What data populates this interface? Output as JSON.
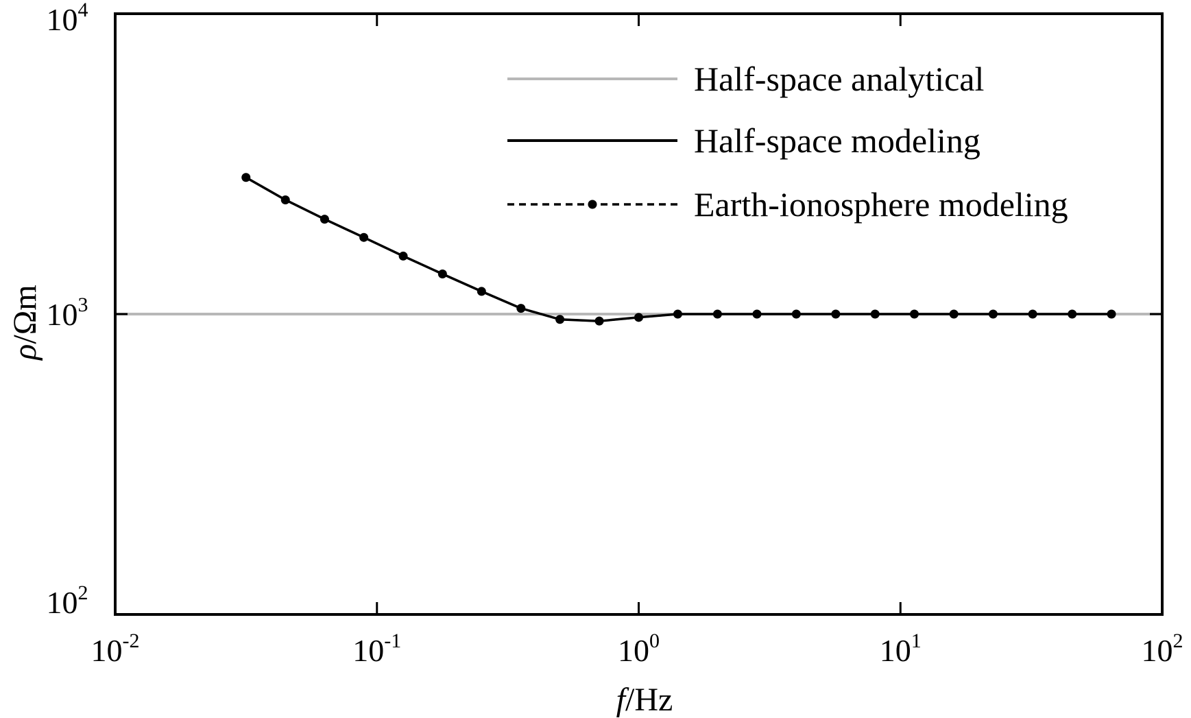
{
  "chart_data": {
    "type": "line",
    "title": "",
    "xlabel": {
      "italic": "f",
      "rest": "/Hz"
    },
    "ylabel": {
      "italic": "ρ",
      "rest": "/Ωm"
    },
    "xscale": "log",
    "yscale": "log",
    "xlim": [
      0.01,
      100
    ],
    "ylim": [
      100,
      10000
    ],
    "grid": false,
    "legend_position": "top-right",
    "x_ticks": [
      {
        "value": 0.01,
        "base": "10",
        "exp": "-2"
      },
      {
        "value": 0.1,
        "base": "10",
        "exp": "-1"
      },
      {
        "value": 1,
        "base": "10",
        "exp": "0"
      },
      {
        "value": 10,
        "base": "10",
        "exp": "1"
      },
      {
        "value": 100,
        "base": "10",
        "exp": "2"
      }
    ],
    "y_ticks": [
      {
        "value": 100,
        "base": "10",
        "exp": "2"
      },
      {
        "value": 1000,
        "base": "10",
        "exp": "3"
      },
      {
        "value": 10000,
        "base": "10",
        "exp": "4"
      }
    ],
    "series": [
      {
        "name": "Half-space analytical",
        "color": "#b8b8b8",
        "style": "solid",
        "x": [
          0.01,
          100
        ],
        "y": [
          1000,
          1000
        ]
      },
      {
        "name": "Half-space modeling",
        "color": "#000000",
        "style": "solid",
        "x": [
          0.0316,
          0.0447,
          0.0631,
          0.0891,
          0.126,
          0.178,
          0.251,
          0.355,
          0.5,
          0.707,
          1.0,
          1.41,
          2.0,
          2.83,
          4.0,
          5.66,
          8.0,
          11.3,
          16.0,
          22.6,
          32.0,
          45.3,
          64.0
        ],
        "y": [
          2850,
          2400,
          2070,
          1800,
          1560,
          1360,
          1190,
          1045,
          960,
          948,
          975,
          1000,
          1000,
          1000,
          1000,
          1000,
          1000,
          1000,
          1000,
          1000,
          1000,
          1000,
          1000
        ]
      },
      {
        "name": "Earth-ionosphere modeling",
        "color": "#000000",
        "style": "dashed-markers",
        "x": [
          0.0316,
          0.0447,
          0.0631,
          0.0891,
          0.126,
          0.178,
          0.251,
          0.355,
          0.5,
          0.707,
          1.0,
          1.41,
          2.0,
          2.83,
          4.0,
          5.66,
          8.0,
          11.3,
          16.0,
          22.6,
          32.0,
          45.3,
          64.0
        ],
        "y": [
          2850,
          2400,
          2070,
          1800,
          1560,
          1360,
          1190,
          1045,
          960,
          948,
          975,
          1000,
          1000,
          1000,
          1000,
          1000,
          1000,
          1000,
          1000,
          1000,
          1000,
          1000,
          1000
        ]
      }
    ]
  }
}
